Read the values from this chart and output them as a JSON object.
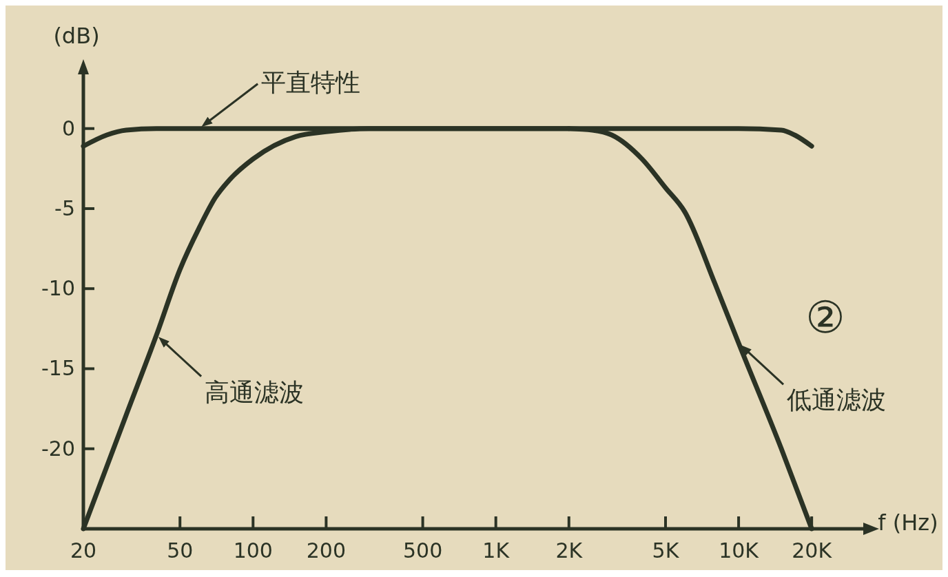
{
  "chart_data": {
    "type": "line",
    "xlabel": "f (Hz)",
    "ylabel": "(dB)",
    "log": "x",
    "xlim": [
      20,
      33700
    ],
    "ylim": [
      -25,
      3.6
    ],
    "xticks": [
      20,
      50,
      100,
      200,
      500,
      {
        "value": 1000,
        "label": "1K"
      },
      {
        "value": 2000,
        "label": "2K"
      },
      {
        "value": 5000,
        "label": "5K"
      },
      {
        "value": 10000,
        "label": "10K"
      },
      {
        "value": 20000,
        "label": "20K"
      }
    ],
    "yticks": [
      0,
      -5,
      -10,
      -15,
      -20
    ],
    "grid": false,
    "line_style": "solid",
    "marker": "none",
    "series": [
      {
        "color": "#2b3325",
        "x": [
          20,
          25,
          30,
          40,
          100,
          1000,
          10000,
          15000,
          17000,
          20000
        ],
        "values": [
          -1.1,
          -0.4,
          -0.1,
          0,
          0,
          0,
          0,
          -0.1,
          -0.4,
          -1.1
        ]
      },
      {
        "color": "#2b3325",
        "x": [
          20,
          30,
          40,
          50,
          60,
          70,
          80,
          100,
          150,
          200,
          300,
          1000,
          2000
        ],
        "values": [
          -25,
          -17.9,
          -12.9,
          -8.8,
          -6.2,
          -4.3,
          -3.2,
          -1.9,
          -0.5,
          -0.2,
          0,
          0,
          0
        ]
      },
      {
        "color": "#2b3325",
        "x": [
          2000,
          2500,
          3000,
          4000,
          5000,
          6000,
          8000,
          10000,
          15000,
          20000
        ],
        "values": [
          0,
          -0.1,
          -0.4,
          -1.9,
          -3.7,
          -5.2,
          -9.7,
          -13.4,
          -20,
          -25
        ]
      }
    ],
    "annotations": [
      {
        "text": "平直特性",
        "x": 60,
        "y": 0
      },
      {
        "text": "高通滤波",
        "x": 40,
        "y": -12.9
      },
      {
        "text": "低通滤波",
        "x": 10000,
        "y": -13.4
      },
      "②"
    ]
  }
}
